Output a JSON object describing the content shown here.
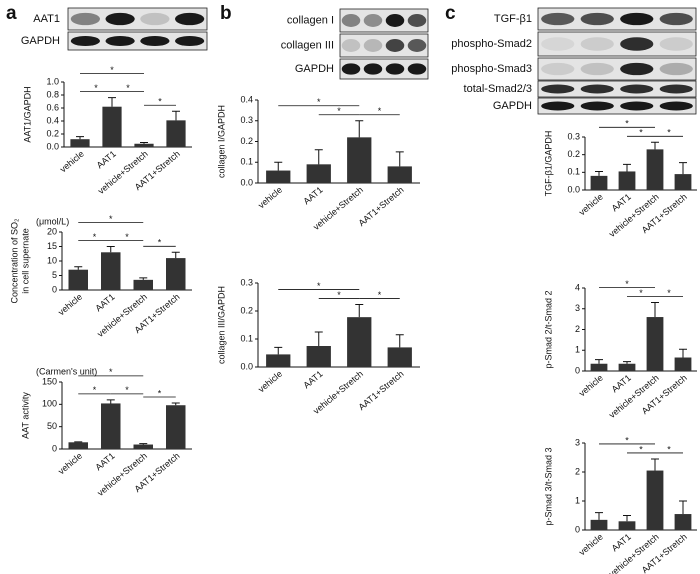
{
  "panels": [
    {
      "letter": "a",
      "blot_rows": [
        "AAT1",
        "GAPDH"
      ]
    },
    {
      "letter": "b",
      "blot_rows": [
        "collagen I",
        "collagen III",
        "GAPDH"
      ]
    },
    {
      "letter": "c",
      "blot_rows": [
        "TGF-β1",
        "phospho-Smad2",
        "phospho-Smad3",
        "total-Smad2/3",
        "GAPDH"
      ]
    }
  ],
  "chart_data": [
    {
      "type": "bar",
      "ylabel": "AAT1/GAPDH",
      "categories": [
        "vehicle",
        "AAT1",
        "vehicle+Stretch",
        "AAT1+Stretch"
      ],
      "values": [
        0.12,
        0.62,
        0.05,
        0.41
      ],
      "errors": [
        0.04,
        0.14,
        0.02,
        0.14
      ],
      "color": "#333333",
      "ylim": [
        0,
        1
      ],
      "yticks": [
        {
          "value": 0,
          "label": "0.0"
        },
        0.2,
        0.4,
        0.6,
        0.8,
        {
          "value": 1,
          "label": "1.0"
        }
      ],
      "significance": [
        {
          "pair": [
            "vehicle",
            "AAT1"
          ],
          "label": "*"
        },
        {
          "pair": [
            "AAT1",
            "vehicle+Stretch"
          ],
          "label": "*"
        },
        {
          "pair": [
            "vehicle",
            "vehicle+Stretch"
          ],
          "label": "*"
        },
        {
          "pair": [
            "vehicle+Stretch",
            "AAT1+Stretch"
          ],
          "label": "*"
        }
      ]
    },
    {
      "type": "bar",
      "ylabel": [
        "Concentration of SO₂",
        "in cell supernate"
      ],
      "unit": "(μmol/L)",
      "categories": [
        "vehicle",
        "AAT1",
        "vehicle+Stretch",
        "AAT1+Stretch"
      ],
      "values": [
        7,
        13,
        3.5,
        11
      ],
      "errors": [
        1,
        2,
        0.7,
        2
      ],
      "color": "#333333",
      "ylim": [
        0,
        20
      ],
      "yticks": [
        0,
        5,
        10,
        15,
        20
      ],
      "significance": [
        {
          "pair": [
            "vehicle",
            "AAT1"
          ],
          "label": "*"
        },
        {
          "pair": [
            "AAT1",
            "vehicle+Stretch"
          ],
          "label": "*"
        },
        {
          "pair": [
            "vehicle",
            "vehicle+Stretch"
          ],
          "label": "*"
        },
        {
          "pair": [
            "vehicle+Stretch",
            "AAT1+Stretch"
          ],
          "label": "*"
        }
      ]
    },
    {
      "type": "bar",
      "ylabel": "AAT activity",
      "unit": "(Carmen's unit)",
      "categories": [
        "vehicle",
        "AAT1",
        "vehicle+Stretch",
        "AAT1+Stretch"
      ],
      "values": [
        15,
        102,
        10,
        98
      ],
      "errors": [
        1,
        8,
        2,
        5
      ],
      "color": "#333333",
      "ylim": [
        0,
        150
      ],
      "yticks": [
        0,
        50,
        100,
        150
      ],
      "significance": [
        {
          "pair": [
            "vehicle",
            "AAT1"
          ],
          "label": "*"
        },
        {
          "pair": [
            "AAT1",
            "vehicle+Stretch"
          ],
          "label": "*"
        },
        {
          "pair": [
            "vehicle",
            "vehicle+Stretch"
          ],
          "label": "*"
        },
        {
          "pair": [
            "vehicle+Stretch",
            "AAT1+Stretch"
          ],
          "label": "*"
        }
      ]
    },
    {
      "type": "bar",
      "ylabel": "collagen I/GAPDH",
      "categories": [
        "vehicle",
        "AAT1",
        "vehicle+Stretch",
        "AAT1+Stretch"
      ],
      "values": [
        0.06,
        0.09,
        0.22,
        0.08
      ],
      "errors": [
        0.04,
        0.07,
        0.08,
        0.07
      ],
      "color": "#333333",
      "ylim": [
        0,
        0.4
      ],
      "yticks": [
        {
          "value": 0,
          "label": "0.0"
        },
        0.1,
        0.2,
        0.3,
        0.4
      ],
      "significance": [
        {
          "pair": [
            "AAT1",
            "vehicle+Stretch"
          ],
          "label": "*"
        },
        {
          "pair": [
            "vehicle",
            "vehicle+Stretch"
          ],
          "label": "*"
        },
        {
          "pair": [
            "vehicle+Stretch",
            "AAT1+Stretch"
          ],
          "label": "*"
        }
      ]
    },
    {
      "type": "bar",
      "ylabel": "collagen III/GAPDH",
      "categories": [
        "vehicle",
        "AAT1",
        "vehicle+Stretch",
        "AAT1+Stretch"
      ],
      "values": [
        0.045,
        0.075,
        0.178,
        0.07
      ],
      "errors": [
        0.025,
        0.05,
        0.045,
        0.045
      ],
      "color": "#333333",
      "ylim": [
        0,
        0.3
      ],
      "yticks": [
        {
          "value": 0,
          "label": "0.0"
        },
        0.1,
        0.2,
        0.3
      ],
      "significance": [
        {
          "pair": [
            "AAT1",
            "vehicle+Stretch"
          ],
          "label": "*"
        },
        {
          "pair": [
            "vehicle",
            "vehicle+Stretch"
          ],
          "label": "*"
        },
        {
          "pair": [
            "vehicle+Stretch",
            "AAT1+Stretch"
          ],
          "label": "*"
        }
      ]
    },
    {
      "type": "bar",
      "ylabel": "TGF-β1/GAPDH",
      "categories": [
        "vehicle",
        "AAT1",
        "vehicle+Stretch",
        "AAT1+Stretch"
      ],
      "values": [
        0.08,
        0.105,
        0.23,
        0.09
      ],
      "errors": [
        0.025,
        0.04,
        0.04,
        0.065
      ],
      "color": "#333333",
      "ylim": [
        0,
        0.3
      ],
      "yticks": [
        {
          "value": 0,
          "label": "0.0"
        },
        0.1,
        0.2,
        0.3
      ],
      "significance": [
        {
          "pair": [
            "AAT1",
            "vehicle+Stretch"
          ],
          "label": "*"
        },
        {
          "pair": [
            "vehicle",
            "vehicle+Stretch"
          ],
          "label": "*"
        },
        {
          "pair": [
            "vehicle+Stretch",
            "AAT1+Stretch"
          ],
          "label": "*"
        }
      ]
    },
    {
      "type": "bar",
      "ylabel": "p-Smad 2/t-Smad 2",
      "categories": [
        "vehicle",
        "AAT1",
        "vehicle+Stretch",
        "AAT1+Stretch"
      ],
      "values": [
        0.35,
        0.35,
        2.6,
        0.65
      ],
      "errors": [
        0.2,
        0.1,
        0.7,
        0.4
      ],
      "color": "#333333",
      "ylim": [
        0,
        4
      ],
      "yticks": [
        0,
        1,
        2,
        3,
        4
      ],
      "significance": [
        {
          "pair": [
            "AAT1",
            "vehicle+Stretch"
          ],
          "label": "*"
        },
        {
          "pair": [
            "vehicle",
            "vehicle+Stretch"
          ],
          "label": "*"
        },
        {
          "pair": [
            "vehicle+Stretch",
            "AAT1+Stretch"
          ],
          "label": "*"
        }
      ]
    },
    {
      "type": "bar",
      "ylabel": "p-Smad 3/t-Smad 3",
      "categories": [
        "vehicle",
        "AAT1",
        "vehicle+Stretch",
        "AAT1+Stretch"
      ],
      "values": [
        0.35,
        0.3,
        2.05,
        0.55
      ],
      "errors": [
        0.25,
        0.2,
        0.4,
        0.45
      ],
      "color": "#333333",
      "ylim": [
        0,
        3
      ],
      "yticks": [
        0,
        1,
        2,
        3
      ],
      "significance": [
        {
          "pair": [
            "AAT1",
            "vehicle+Stretch"
          ],
          "label": "*"
        },
        {
          "pair": [
            "vehicle",
            "vehicle+Stretch"
          ],
          "label": "*"
        },
        {
          "pair": [
            "vehicle+Stretch",
            "AAT1+Stretch"
          ],
          "label": "*"
        }
      ]
    }
  ]
}
